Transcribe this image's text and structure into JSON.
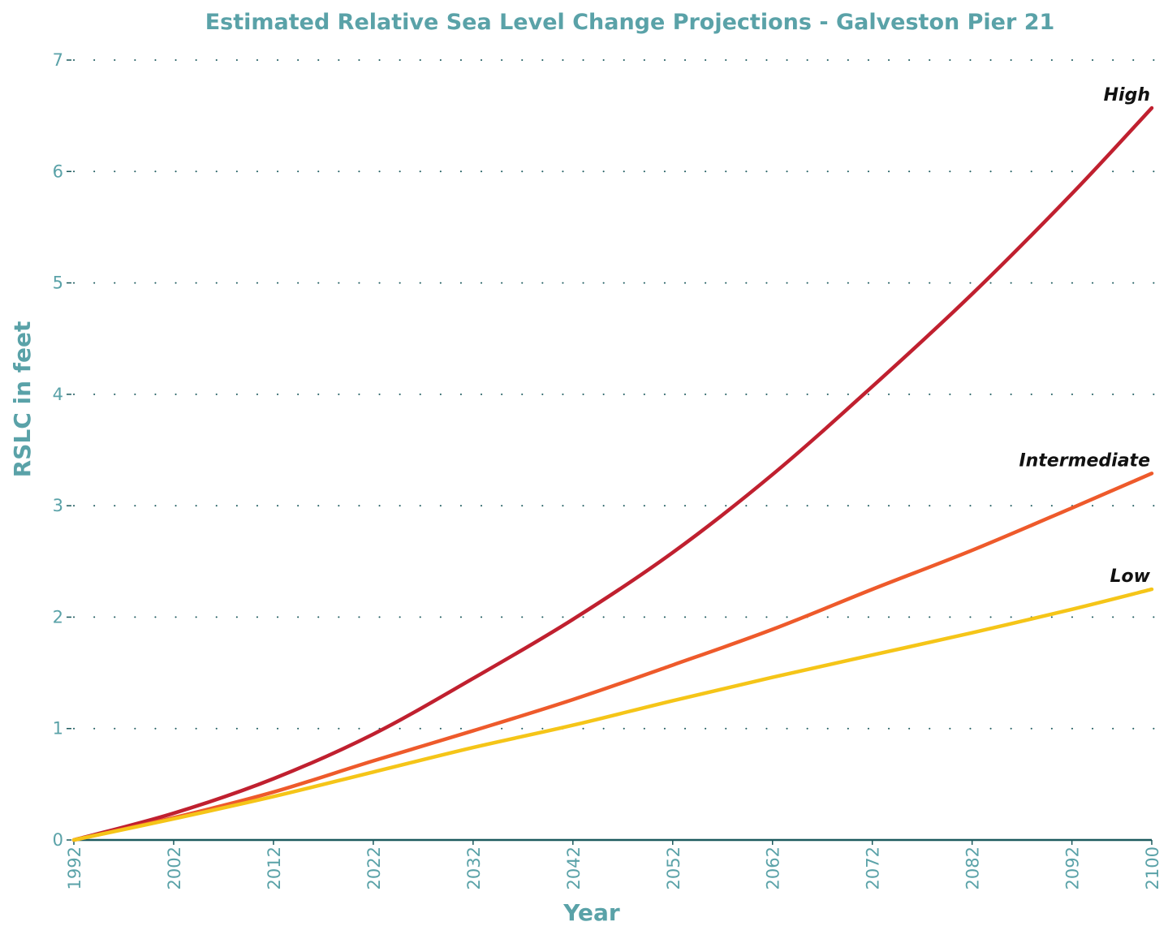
{
  "chart_data": {
    "type": "line",
    "title": "Estimated Relative Sea Level Change Projections - Galveston Pier 21",
    "xlabel": "Year",
    "ylabel": "RSLC in feet",
    "xlim": [
      1992,
      2100
    ],
    "ylim": [
      0,
      7
    ],
    "x_ticks": [
      "1992",
      "2002",
      "2012",
      "2022",
      "2032",
      "2042",
      "2052",
      "2062",
      "2072",
      "2082",
      "2092",
      "2100"
    ],
    "y_ticks": [
      "0",
      "1",
      "2",
      "3",
      "4",
      "5",
      "6",
      "7"
    ],
    "grid": "horizontal dotted",
    "x": [
      1992,
      2002,
      2012,
      2022,
      2032,
      2042,
      2052,
      2062,
      2072,
      2082,
      2092,
      2100
    ],
    "series": [
      {
        "name": "High",
        "color": "#c0202f",
        "values": [
          0.0,
          0.24,
          0.55,
          0.95,
          1.45,
          1.98,
          2.58,
          3.28,
          4.07,
          4.9,
          5.8,
          6.57
        ]
      },
      {
        "name": "Intermediate",
        "color": "#ee5a2b",
        "values": [
          0.0,
          0.2,
          0.43,
          0.71,
          0.98,
          1.26,
          1.57,
          1.89,
          2.25,
          2.6,
          2.98,
          3.29
        ]
      },
      {
        "name": "Low",
        "color": "#f5c518",
        "values": [
          0.0,
          0.19,
          0.39,
          0.61,
          0.83,
          1.03,
          1.25,
          1.46,
          1.66,
          1.86,
          2.07,
          2.25
        ]
      }
    ],
    "legend": "inline labels at line ends",
    "axis_color": "#1c5a5e",
    "grid_color": "#1c5a5e",
    "text_color": "#5aa2a8"
  }
}
